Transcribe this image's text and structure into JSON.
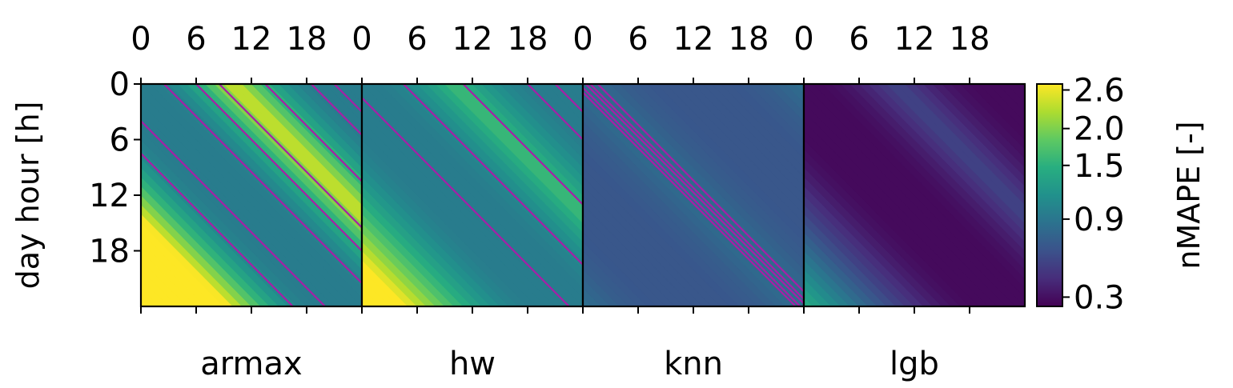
{
  "chart_data": {
    "type": "heatmap",
    "panels": [
      {
        "name": "armax",
        "peak_offset": 10,
        "low": 0.95,
        "high": 2.5,
        "contours": [
          -7.5,
          -4.0,
          2.5,
          6.0,
          8.5,
          13.5,
          18.5,
          21.0
        ]
      },
      {
        "name": "hw",
        "peak_offset": 10,
        "low": 0.95,
        "high": 1.65,
        "contours": [
          -1.5,
          4.5,
          11.0,
          18.0,
          21.0
        ]
      },
      {
        "name": "knn",
        "peak_offset": 0,
        "low": 0.65,
        "high": 0.85,
        "contours": [
          -0.9,
          -0.4,
          0.3,
          0.8,
          1.6
        ]
      },
      {
        "name": "lgb",
        "peak_offset": 10,
        "low": 0.28,
        "high": 0.55,
        "contours": []
      }
    ],
    "x_ticks": [
      "0",
      "6",
      "12",
      "18"
    ],
    "y_ticks": [
      "0",
      "6",
      "12",
      "18"
    ],
    "x_range": [
      0,
      24
    ],
    "y_range": [
      0,
      24
    ],
    "ylabel": "day hour [h]",
    "colorbar": {
      "label": "nMAPE [-]",
      "ticks": [
        {
          "value": 0.3,
          "label": "0.3"
        },
        {
          "value": 0.9,
          "label": "0.9"
        },
        {
          "value": 1.5,
          "label": "1.5"
        },
        {
          "value": 2.0,
          "label": "2.0"
        },
        {
          "value": 2.6,
          "label": "2.6"
        }
      ],
      "range": [
        0.25,
        2.7
      ],
      "scale": "sqrt",
      "colormap": "viridis"
    },
    "contour_color": "#a71fa7"
  }
}
